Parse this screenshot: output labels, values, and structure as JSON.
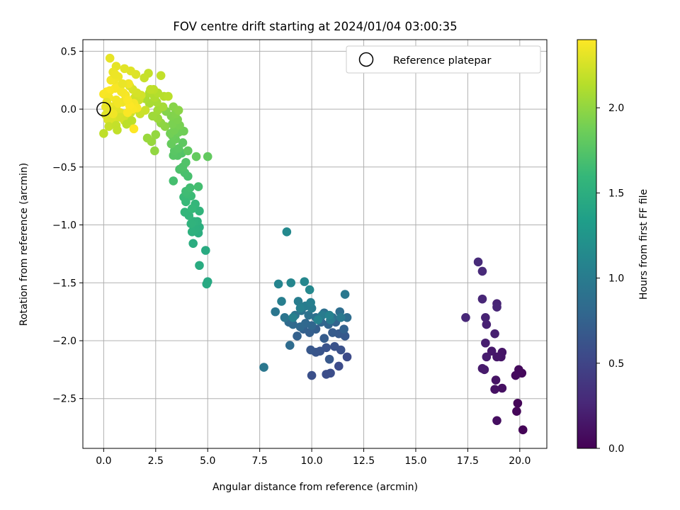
{
  "chart_data": {
    "type": "scatter",
    "title": "FOV centre drift starting at 2024/01/04 03:00:35",
    "xlabel": "Angular distance from reference (arcmin)",
    "ylabel": "Rotation from reference (arcmin)",
    "xlim": [
      -1.0,
      21.3
    ],
    "ylim": [
      -2.93,
      0.6
    ],
    "xticks": [
      0.0,
      2.5,
      5.0,
      7.5,
      10.0,
      12.5,
      15.0,
      17.5,
      20.0
    ],
    "xtick_labels": [
      "0.0",
      "2.5",
      "5.0",
      "7.5",
      "10.0",
      "12.5",
      "15.0",
      "17.5",
      "20.0"
    ],
    "yticks": [
      0.5,
      0.0,
      -0.5,
      -1.0,
      -1.5,
      -2.0,
      -2.5
    ],
    "ytick_labels": [
      "0.5",
      "0.0",
      "−0.5",
      "−1.0",
      "−1.5",
      "−2.0",
      "−2.5"
    ],
    "grid": true,
    "legend": {
      "position": "top-right",
      "entries": [
        "Reference platepar"
      ]
    },
    "reference_point": {
      "name": "Reference platepar",
      "x": 0.0,
      "y": 0.0,
      "marker": "open-circle"
    },
    "colorbar": {
      "label": "Hours from first FF file",
      "range": [
        0.0,
        2.4
      ],
      "ticks": [
        0.0,
        0.5,
        1.0,
        1.5,
        2.0
      ],
      "tick_labels": [
        "0.0",
        "0.5",
        "1.0",
        "1.5",
        "2.0"
      ],
      "colormap": "viridis"
    },
    "color_stops": [
      "#440154",
      "#482878",
      "#3e4989",
      "#31688e",
      "#26828e",
      "#1f9e89",
      "#35b779",
      "#6ece58",
      "#b5de2b",
      "#fde725"
    ],
    "points": [
      [
        20.15,
        -2.77,
        0.02
      ],
      [
        19.9,
        -2.54,
        0.03
      ],
      [
        19.85,
        -2.61,
        0.04
      ],
      [
        20.1,
        -2.28,
        0.05
      ],
      [
        19.95,
        -2.25,
        0.06
      ],
      [
        19.8,
        -2.3,
        0.07
      ],
      [
        18.9,
        -2.69,
        0.09
      ],
      [
        19.15,
        -2.41,
        0.1
      ],
      [
        18.8,
        -2.42,
        0.11
      ],
      [
        18.85,
        -2.34,
        0.12
      ],
      [
        19.1,
        -2.14,
        0.13
      ],
      [
        19.15,
        -2.1,
        0.14
      ],
      [
        18.9,
        -2.14,
        0.15
      ],
      [
        18.65,
        -2.09,
        0.16
      ],
      [
        18.3,
        -2.25,
        0.17
      ],
      [
        18.2,
        -2.24,
        0.18
      ],
      [
        18.4,
        -2.14,
        0.19
      ],
      [
        18.35,
        -2.02,
        0.2
      ],
      [
        18.8,
        -1.94,
        0.21
      ],
      [
        18.4,
        -1.86,
        0.22
      ],
      [
        18.35,
        -1.8,
        0.23
      ],
      [
        18.9,
        -1.68,
        0.24
      ],
      [
        18.9,
        -1.71,
        0.25
      ],
      [
        18.2,
        -1.64,
        0.26
      ],
      [
        17.4,
        -1.8,
        0.27
      ],
      [
        18.2,
        -1.4,
        0.28
      ],
      [
        18.0,
        -1.32,
        0.29
      ],
      [
        11.7,
        -2.14,
        0.55
      ],
      [
        11.3,
        -2.22,
        0.56
      ],
      [
        10.9,
        -2.28,
        0.57
      ],
      [
        10.7,
        -2.29,
        0.58
      ],
      [
        10.0,
        -2.3,
        0.59
      ],
      [
        11.4,
        -2.08,
        0.6
      ],
      [
        11.1,
        -2.05,
        0.61
      ],
      [
        10.7,
        -2.06,
        0.62
      ],
      [
        10.4,
        -2.09,
        0.63
      ],
      [
        10.2,
        -2.1,
        0.64
      ],
      [
        9.95,
        -2.08,
        0.65
      ],
      [
        10.85,
        -2.16,
        0.66
      ],
      [
        11.6,
        -1.96,
        0.67
      ],
      [
        11.3,
        -1.94,
        0.68
      ],
      [
        11.0,
        -1.93,
        0.69
      ],
      [
        10.6,
        -1.98,
        0.7
      ],
      [
        10.2,
        -1.9,
        0.71
      ],
      [
        9.9,
        -1.93,
        0.72
      ],
      [
        9.6,
        -1.9,
        0.73
      ],
      [
        9.3,
        -1.96,
        0.74
      ],
      [
        11.55,
        -1.9,
        0.75
      ],
      [
        11.15,
        -1.84,
        0.76
      ],
      [
        10.8,
        -1.86,
        0.77
      ],
      [
        10.45,
        -1.84,
        0.78
      ],
      [
        10.0,
        -1.87,
        0.79
      ],
      [
        9.7,
        -1.85,
        0.8
      ],
      [
        9.45,
        -1.88,
        0.81
      ],
      [
        9.1,
        -1.86,
        0.82
      ],
      [
        8.9,
        -1.84,
        0.83
      ],
      [
        8.95,
        -2.04,
        0.84
      ],
      [
        11.7,
        -1.8,
        0.85
      ],
      [
        11.35,
        -1.75,
        0.86
      ],
      [
        11.0,
        -1.8,
        0.87
      ],
      [
        10.6,
        -1.76,
        0.88
      ],
      [
        10.2,
        -1.8,
        0.89
      ],
      [
        9.85,
        -1.78,
        0.9
      ],
      [
        9.5,
        -1.74,
        0.91
      ],
      [
        9.2,
        -1.78,
        0.92
      ],
      [
        8.7,
        -1.8,
        0.93
      ],
      [
        8.25,
        -1.75,
        0.94
      ],
      [
        7.7,
        -2.23,
        0.95
      ],
      [
        11.6,
        -1.6,
        0.96
      ],
      [
        11.4,
        -1.8,
        0.97
      ],
      [
        10.9,
        -1.82,
        0.98
      ],
      [
        10.5,
        -1.78,
        0.99
      ],
      [
        10.0,
        -1.72,
        1.0
      ],
      [
        9.7,
        -1.7,
        1.01
      ],
      [
        9.35,
        -1.66,
        1.02
      ],
      [
        8.55,
        -1.66,
        1.03
      ],
      [
        9.95,
        -1.67,
        1.04
      ],
      [
        9.45,
        -1.72,
        1.05
      ],
      [
        9.1,
        -1.8,
        1.06
      ],
      [
        10.85,
        -1.78,
        1.07
      ],
      [
        10.3,
        -1.82,
        1.08
      ],
      [
        8.4,
        -1.51,
        1.09
      ],
      [
        9.0,
        -1.5,
        1.1
      ],
      [
        9.65,
        -1.49,
        1.11
      ],
      [
        9.9,
        -1.56,
        1.12
      ],
      [
        8.8,
        -1.06,
        1.13
      ],
      [
        5.0,
        -1.49,
        1.44
      ],
      [
        4.95,
        -1.51,
        1.45
      ],
      [
        4.9,
        -1.22,
        1.46
      ],
      [
        4.6,
        -1.35,
        1.47
      ],
      [
        4.3,
        -1.16,
        1.48
      ],
      [
        4.55,
        -1.07,
        1.49
      ],
      [
        4.6,
        -1.02,
        1.5
      ],
      [
        4.4,
        -1.04,
        1.51
      ],
      [
        4.25,
        -1.06,
        1.52
      ],
      [
        4.5,
        -0.97,
        1.53
      ],
      [
        4.35,
        -0.97,
        1.54
      ],
      [
        4.2,
        -0.99,
        1.55
      ],
      [
        4.6,
        -0.88,
        1.56
      ],
      [
        4.1,
        -0.92,
        1.57
      ],
      [
        3.9,
        -0.89,
        1.58
      ],
      [
        4.4,
        -0.82,
        1.59
      ],
      [
        4.25,
        -0.86,
        1.6
      ],
      [
        3.95,
        -0.8,
        1.61
      ],
      [
        3.85,
        -0.76,
        1.62
      ],
      [
        4.2,
        -0.75,
        1.63
      ],
      [
        4.0,
        -0.73,
        1.64
      ],
      [
        3.95,
        -0.71,
        1.65
      ],
      [
        4.15,
        -0.68,
        1.66
      ],
      [
        4.55,
        -0.67,
        1.67
      ],
      [
        3.35,
        -0.62,
        1.68
      ],
      [
        4.05,
        -0.58,
        1.69
      ],
      [
        3.9,
        -0.55,
        1.7
      ],
      [
        3.65,
        -0.52,
        1.71
      ],
      [
        3.8,
        -0.5,
        1.72
      ],
      [
        3.95,
        -0.46,
        1.73
      ],
      [
        3.75,
        -0.38,
        1.74
      ],
      [
        3.55,
        -0.4,
        1.75
      ],
      [
        3.35,
        -0.4,
        1.76
      ],
      [
        3.4,
        -0.36,
        1.77
      ],
      [
        3.6,
        -0.34,
        1.78
      ],
      [
        3.8,
        -0.29,
        1.79
      ],
      [
        4.05,
        -0.36,
        1.8
      ],
      [
        5.0,
        -0.41,
        1.81
      ],
      [
        4.45,
        -0.41,
        1.82
      ],
      [
        3.25,
        -0.3,
        1.83
      ],
      [
        3.45,
        -0.26,
        1.84
      ],
      [
        3.3,
        -0.23,
        1.85
      ],
      [
        3.6,
        -0.2,
        1.86
      ],
      [
        3.85,
        -0.19,
        1.87
      ],
      [
        3.2,
        -0.21,
        1.88
      ],
      [
        3.4,
        -0.18,
        1.89
      ],
      [
        3.65,
        -0.14,
        1.9
      ],
      [
        3.3,
        -0.13,
        1.91
      ],
      [
        3.55,
        -0.09,
        1.92
      ],
      [
        3.25,
        -0.06,
        1.93
      ],
      [
        3.45,
        -0.04,
        1.94
      ],
      [
        3.0,
        -0.02,
        1.95
      ],
      [
        3.35,
        0.02,
        1.96
      ],
      [
        3.6,
        -0.01,
        1.97
      ],
      [
        2.95,
        -0.15,
        1.98
      ],
      [
        2.75,
        -0.12,
        1.99
      ],
      [
        2.45,
        -0.36,
        2.0
      ],
      [
        2.5,
        -0.22,
        2.01
      ],
      [
        2.3,
        -0.28,
        2.02
      ],
      [
        2.1,
        -0.25,
        2.03
      ],
      [
        2.6,
        -0.08,
        2.04
      ],
      [
        2.35,
        -0.06,
        2.05
      ],
      [
        2.6,
        -0.01,
        2.06
      ],
      [
        2.85,
        0.02,
        2.07
      ],
      [
        2.55,
        0.06,
        2.08
      ],
      [
        2.2,
        0.05,
        2.09
      ],
      [
        2.0,
        0.09,
        2.1
      ],
      [
        2.45,
        0.1,
        2.11
      ],
      [
        2.2,
        0.14,
        2.12
      ],
      [
        2.6,
        0.14,
        2.13
      ],
      [
        2.9,
        0.11,
        2.14
      ],
      [
        3.1,
        0.11,
        2.15
      ],
      [
        2.4,
        0.17,
        2.16
      ],
      [
        2.25,
        0.17,
        2.17
      ],
      [
        2.75,
        0.29,
        2.18
      ],
      [
        2.15,
        0.31,
        2.19
      ],
      [
        1.95,
        0.27,
        2.2
      ],
      [
        2.0,
        -0.01,
        2.21
      ],
      [
        1.7,
        0.08,
        2.22
      ],
      [
        1.5,
        0.1,
        2.23
      ],
      [
        1.8,
        0.12,
        2.24
      ],
      [
        1.6,
        0.14,
        2.25
      ],
      [
        1.4,
        0.17,
        2.26
      ],
      [
        1.25,
        0.2,
        2.27
      ],
      [
        1.55,
        0.3,
        2.28
      ],
      [
        1.3,
        0.33,
        2.29
      ],
      [
        1.0,
        0.35,
        2.3
      ],
      [
        0.6,
        0.37,
        2.31
      ],
      [
        0.3,
        0.44,
        2.32
      ],
      [
        0.45,
        0.32,
        2.33
      ],
      [
        0.7,
        0.28,
        2.34
      ],
      [
        0.5,
        0.25,
        2.35
      ],
      [
        0.35,
        0.25,
        2.36
      ],
      [
        0.8,
        0.2,
        2.37
      ],
      [
        0.55,
        0.18,
        2.38
      ],
      [
        0.3,
        0.16,
        2.39
      ],
      [
        0.15,
        0.15,
        2.4
      ],
      [
        0.0,
        0.13,
        2.38
      ],
      [
        0.25,
        0.1,
        2.37
      ],
      [
        0.6,
        0.08,
        2.36
      ],
      [
        0.9,
        0.06,
        2.35
      ],
      [
        0.4,
        0.02,
        2.34
      ],
      [
        0.1,
        0.02,
        2.33
      ],
      [
        0.3,
        -0.02,
        2.32
      ],
      [
        0.6,
        0.0,
        2.31
      ],
      [
        0.8,
        -0.03,
        2.3
      ],
      [
        0.1,
        -0.05,
        2.29
      ],
      [
        0.2,
        -0.09,
        2.28
      ],
      [
        0.5,
        -0.1,
        2.27
      ],
      [
        0.8,
        -0.07,
        2.26
      ],
      [
        1.0,
        -0.1,
        2.25
      ],
      [
        1.15,
        -0.05,
        2.24
      ],
      [
        1.3,
        -0.03,
        2.23
      ],
      [
        1.5,
        0.0,
        2.22
      ],
      [
        1.75,
        -0.04,
        2.21
      ],
      [
        0.25,
        -0.15,
        2.2
      ],
      [
        0.6,
        -0.14,
        2.19
      ],
      [
        0.65,
        -0.18,
        2.18
      ],
      [
        0.0,
        -0.21,
        2.17
      ],
      [
        1.1,
        -0.13,
        2.16
      ],
      [
        1.35,
        -0.1,
        2.15
      ],
      [
        1.2,
        0.22,
        2.35
      ],
      [
        1.05,
        0.12,
        2.36
      ],
      [
        1.45,
        0.05,
        2.37
      ],
      [
        1.6,
        0.01,
        2.38
      ],
      [
        1.4,
        0.0,
        2.39
      ],
      [
        1.25,
        0.03,
        2.4
      ],
      [
        1.15,
        0.08,
        2.39
      ],
      [
        0.95,
        0.14,
        2.38
      ],
      [
        0.85,
        0.15,
        2.37
      ],
      [
        0.7,
        0.05,
        2.36
      ],
      [
        0.45,
        -0.04,
        2.35
      ],
      [
        0.55,
        0.3,
        2.34
      ],
      [
        1.45,
        -0.17,
        2.4
      ],
      [
        1.15,
        -0.03,
        2.39
      ],
      [
        0.9,
        0.22,
        2.33
      ],
      [
        0.15,
        0.06,
        2.32
      ]
    ]
  }
}
